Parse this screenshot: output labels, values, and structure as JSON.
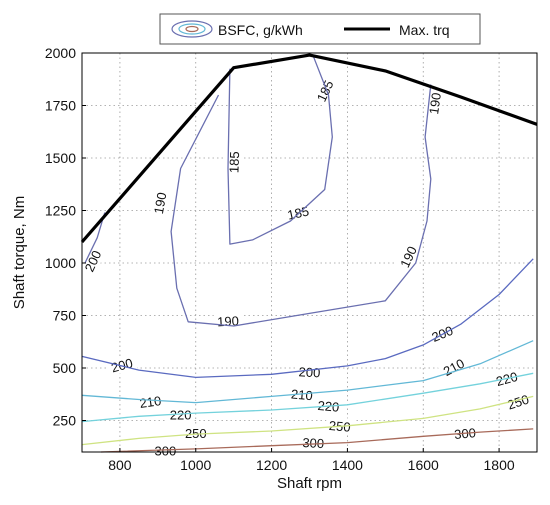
{
  "chart_data": {
    "type": "contour",
    "xlabel": "Shaft rpm",
    "ylabel": "Shaft torque, Nm",
    "xlim": [
      700,
      1900
    ],
    "ylim": [
      100,
      2000
    ],
    "x_ticks": [
      800,
      1000,
      1200,
      1400,
      1600,
      1800
    ],
    "y_ticks": [
      250,
      500,
      750,
      1000,
      1250,
      1500,
      1750,
      2000
    ],
    "grid": true,
    "grid_style": "dotted",
    "legend_position": "top",
    "legend": {
      "contour_label": "BSFC, g/kWh",
      "line_label": "Max. trq"
    },
    "colors": {
      "max_torque": "#000000",
      "c185": "#6a6fb0",
      "c190": "#6a6fb0",
      "c200": "#5a6ac0",
      "c210": "#62b8d6",
      "c220": "#74d2dc",
      "c250": "#cfe382",
      "c300": "#a86a5a"
    },
    "max_torque_curve": {
      "name": "Max. trq",
      "points": [
        [
          700,
          1100
        ],
        [
          1100,
          1930
        ],
        [
          1300,
          1990
        ],
        [
          1500,
          1915
        ],
        [
          1700,
          1790
        ],
        [
          1900,
          1660
        ]
      ]
    },
    "contours": [
      {
        "level": 185,
        "label": "185",
        "color_key": "c185",
        "points": [
          [
            1090,
            1925
          ],
          [
            1085,
            1450
          ],
          [
            1090,
            1090
          ],
          [
            1150,
            1110
          ],
          [
            1250,
            1200
          ],
          [
            1340,
            1350
          ],
          [
            1360,
            1600
          ],
          [
            1350,
            1800
          ],
          [
            1310,
            1985
          ]
        ],
        "labels": [
          [
            1340,
            1820,
            -65
          ],
          [
            1100,
            1480,
            -88
          ],
          [
            1270,
            1240,
            -12
          ]
        ]
      },
      {
        "level": 190,
        "label": "190",
        "color_key": "c190",
        "points": [
          [
            1060,
            1800
          ],
          [
            960,
            1450
          ],
          [
            935,
            1150
          ],
          [
            950,
            880
          ],
          [
            980,
            720
          ],
          [
            1100,
            700
          ],
          [
            1300,
            760
          ],
          [
            1500,
            820
          ],
          [
            1580,
            1000
          ],
          [
            1610,
            1200
          ],
          [
            1620,
            1400
          ],
          [
            1605,
            1600
          ],
          [
            1620,
            1850
          ]
        ],
        "labels": [
          [
            905,
            1285,
            -80
          ],
          [
            1630,
            1760,
            -82
          ],
          [
            1085,
            725,
            -3
          ],
          [
            1560,
            1030,
            -65
          ]
        ]
      },
      {
        "level": 190,
        "label": "",
        "color_key": "c190",
        "points": [
          [
            708,
            1000
          ],
          [
            740,
            1120
          ],
          [
            760,
            1240
          ]
        ],
        "labels": []
      },
      {
        "level": 200,
        "label": "200",
        "color_key": "c200",
        "points": [
          [
            700,
            555
          ],
          [
            850,
            490
          ],
          [
            1000,
            455
          ],
          [
            1200,
            470
          ],
          [
            1400,
            510
          ],
          [
            1500,
            545
          ],
          [
            1600,
            610
          ],
          [
            1700,
            710
          ],
          [
            1800,
            850
          ],
          [
            1890,
            1020
          ]
        ],
        "labels": [
          [
            728,
            1010,
            -65
          ],
          [
            805,
            515,
            -15
          ],
          [
            1300,
            482,
            3
          ],
          [
            1650,
            665,
            -22
          ]
        ]
      },
      {
        "level": 210,
        "label": "210",
        "color_key": "c210",
        "points": [
          [
            700,
            370
          ],
          [
            850,
            350
          ],
          [
            1000,
            335
          ],
          [
            1200,
            365
          ],
          [
            1400,
            395
          ],
          [
            1600,
            440
          ],
          [
            1750,
            520
          ],
          [
            1890,
            630
          ]
        ],
        "labels": [
          [
            880,
            340,
            -8
          ],
          [
            1280,
            375,
            5
          ],
          [
            1680,
            505,
            -28
          ]
        ]
      },
      {
        "level": 220,
        "label": "220",
        "color_key": "c220",
        "points": [
          [
            700,
            245
          ],
          [
            850,
            270
          ],
          [
            1000,
            285
          ],
          [
            1200,
            300
          ],
          [
            1400,
            325
          ],
          [
            1600,
            380
          ],
          [
            1750,
            425
          ],
          [
            1890,
            475
          ]
        ],
        "labels": [
          [
            960,
            278,
            0
          ],
          [
            1350,
            320,
            5
          ],
          [
            1820,
            450,
            -15
          ]
        ]
      },
      {
        "level": 250,
        "label": "250",
        "color_key": "c250",
        "points": [
          [
            700,
            135
          ],
          [
            850,
            165
          ],
          [
            1000,
            185
          ],
          [
            1200,
            200
          ],
          [
            1400,
            225
          ],
          [
            1600,
            260
          ],
          [
            1750,
            305
          ],
          [
            1890,
            365
          ]
        ],
        "labels": [
          [
            1000,
            190,
            0
          ],
          [
            1380,
            225,
            5
          ],
          [
            1850,
            340,
            -18
          ]
        ]
      },
      {
        "level": 300,
        "label": "300",
        "color_key": "c300",
        "points": [
          [
            750,
            100
          ],
          [
            1000,
            115
          ],
          [
            1200,
            130
          ],
          [
            1400,
            145
          ],
          [
            1600,
            175
          ],
          [
            1750,
            195
          ],
          [
            1890,
            210
          ]
        ],
        "labels": [
          [
            920,
            108,
            0
          ],
          [
            1310,
            145,
            3
          ],
          [
            1710,
            190,
            -5
          ]
        ]
      }
    ]
  }
}
